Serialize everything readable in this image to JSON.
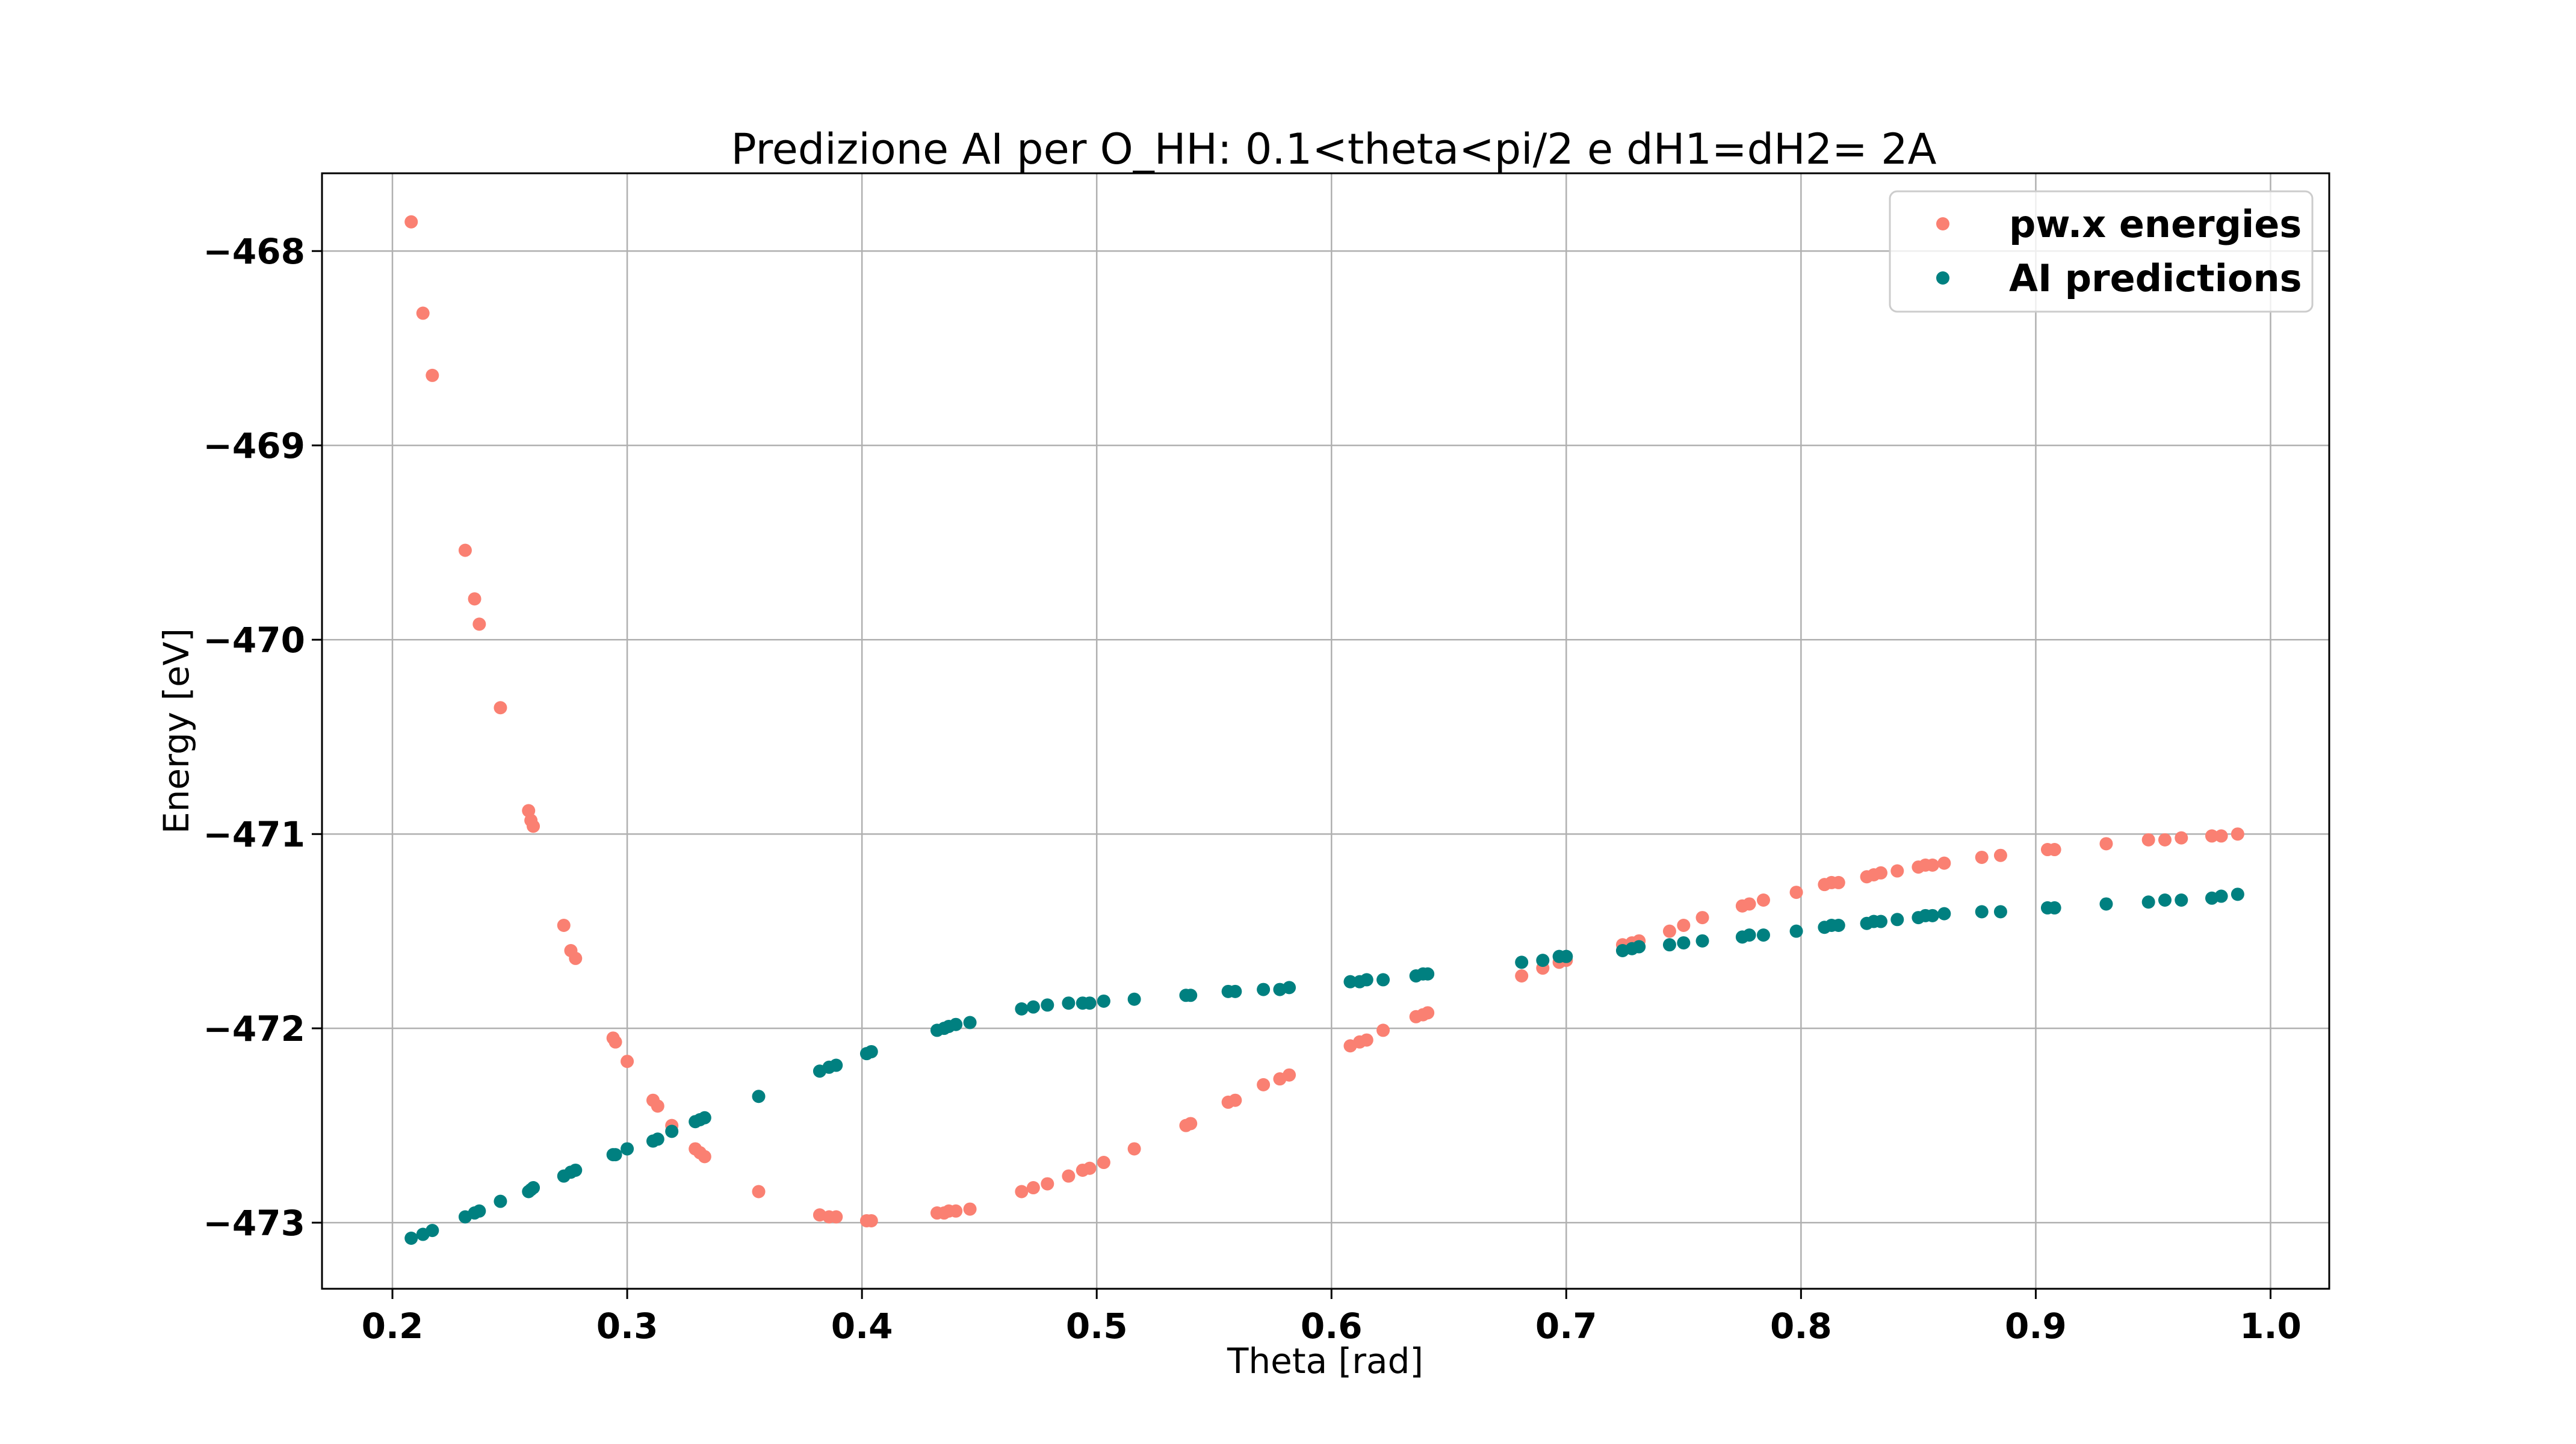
{
  "chart_data": {
    "type": "scatter",
    "title": "Predizione AI per O_HH: 0.1<theta<pi/2 e dH1=dH2= 2A",
    "xlabel": "Theta [rad]",
    "ylabel": "Energy [eV]",
    "xlim": [
      0.17,
      1.025
    ],
    "ylim": [
      -473.34,
      -467.6
    ],
    "grid": true,
    "legend_position": "top-right",
    "x_ticks": [
      {
        "value": 0.2,
        "label": "0.2"
      },
      {
        "value": 0.3,
        "label": "0.3"
      },
      {
        "value": 0.4,
        "label": "0.4"
      },
      {
        "value": 0.5,
        "label": "0.5"
      },
      {
        "value": 0.6,
        "label": "0.6"
      },
      {
        "value": 0.7,
        "label": "0.7"
      },
      {
        "value": 0.8,
        "label": "0.8"
      },
      {
        "value": 0.9,
        "label": "0.9"
      },
      {
        "value": 1.0,
        "label": "1.0"
      }
    ],
    "y_ticks": [
      {
        "value": -468,
        "label": "−468"
      },
      {
        "value": -469,
        "label": "−469"
      },
      {
        "value": -470,
        "label": "−470"
      },
      {
        "value": -471,
        "label": "−471"
      },
      {
        "value": -472,
        "label": "−472"
      },
      {
        "value": -473,
        "label": "−473"
      }
    ],
    "series": [
      {
        "name": "pw.x energies",
        "color": "#fa8072",
        "points": [
          [
            0.208,
            -467.85
          ],
          [
            0.213,
            -468.32
          ],
          [
            0.217,
            -468.64
          ],
          [
            0.231,
            -469.54
          ],
          [
            0.235,
            -469.79
          ],
          [
            0.237,
            -469.92
          ],
          [
            0.246,
            -470.35
          ],
          [
            0.258,
            -470.88
          ],
          [
            0.259,
            -470.93
          ],
          [
            0.26,
            -470.96
          ],
          [
            0.273,
            -471.47
          ],
          [
            0.276,
            -471.6
          ],
          [
            0.278,
            -471.64
          ],
          [
            0.294,
            -472.05
          ],
          [
            0.295,
            -472.07
          ],
          [
            0.3,
            -472.17
          ],
          [
            0.311,
            -472.37
          ],
          [
            0.313,
            -472.4
          ],
          [
            0.319,
            -472.5
          ],
          [
            0.329,
            -472.62
          ],
          [
            0.331,
            -472.64
          ],
          [
            0.333,
            -472.66
          ],
          [
            0.356,
            -472.84
          ],
          [
            0.382,
            -472.96
          ],
          [
            0.386,
            -472.97
          ],
          [
            0.389,
            -472.97
          ],
          [
            0.402,
            -472.99
          ],
          [
            0.404,
            -472.99
          ],
          [
            0.432,
            -472.95
          ],
          [
            0.435,
            -472.95
          ],
          [
            0.437,
            -472.94
          ],
          [
            0.44,
            -472.94
          ],
          [
            0.446,
            -472.93
          ],
          [
            0.468,
            -472.84
          ],
          [
            0.473,
            -472.82
          ],
          [
            0.479,
            -472.8
          ],
          [
            0.488,
            -472.76
          ],
          [
            0.494,
            -472.73
          ],
          [
            0.497,
            -472.72
          ],
          [
            0.503,
            -472.69
          ],
          [
            0.516,
            -472.62
          ],
          [
            0.538,
            -472.5
          ],
          [
            0.54,
            -472.49
          ],
          [
            0.556,
            -472.38
          ],
          [
            0.559,
            -472.37
          ],
          [
            0.571,
            -472.29
          ],
          [
            0.578,
            -472.26
          ],
          [
            0.582,
            -472.24
          ],
          [
            0.608,
            -472.09
          ],
          [
            0.612,
            -472.07
          ],
          [
            0.615,
            -472.06
          ],
          [
            0.622,
            -472.01
          ],
          [
            0.636,
            -471.94
          ],
          [
            0.639,
            -471.93
          ],
          [
            0.641,
            -471.92
          ],
          [
            0.681,
            -471.73
          ],
          [
            0.69,
            -471.69
          ],
          [
            0.697,
            -471.66
          ],
          [
            0.7,
            -471.65
          ],
          [
            0.724,
            -471.57
          ],
          [
            0.728,
            -471.56
          ],
          [
            0.731,
            -471.55
          ],
          [
            0.744,
            -471.5
          ],
          [
            0.75,
            -471.47
          ],
          [
            0.758,
            -471.43
          ],
          [
            0.775,
            -471.37
          ],
          [
            0.778,
            -471.36
          ],
          [
            0.784,
            -471.34
          ],
          [
            0.798,
            -471.3
          ],
          [
            0.81,
            -471.26
          ],
          [
            0.813,
            -471.25
          ],
          [
            0.816,
            -471.25
          ],
          [
            0.828,
            -471.22
          ],
          [
            0.831,
            -471.21
          ],
          [
            0.834,
            -471.2
          ],
          [
            0.841,
            -471.19
          ],
          [
            0.85,
            -471.17
          ],
          [
            0.853,
            -471.16
          ],
          [
            0.856,
            -471.16
          ],
          [
            0.861,
            -471.15
          ],
          [
            0.877,
            -471.12
          ],
          [
            0.885,
            -471.11
          ],
          [
            0.905,
            -471.08
          ],
          [
            0.908,
            -471.08
          ],
          [
            0.93,
            -471.05
          ],
          [
            0.948,
            -471.03
          ],
          [
            0.955,
            -471.03
          ],
          [
            0.962,
            -471.02
          ],
          [
            0.975,
            -471.01
          ],
          [
            0.979,
            -471.01
          ],
          [
            0.986,
            -471.0
          ]
        ]
      },
      {
        "name": "AI predictions",
        "color": "#008080",
        "points": [
          [
            0.208,
            -473.08
          ],
          [
            0.213,
            -473.06
          ],
          [
            0.217,
            -473.04
          ],
          [
            0.231,
            -472.97
          ],
          [
            0.235,
            -472.95
          ],
          [
            0.237,
            -472.94
          ],
          [
            0.246,
            -472.89
          ],
          [
            0.258,
            -472.84
          ],
          [
            0.259,
            -472.83
          ],
          [
            0.26,
            -472.82
          ],
          [
            0.273,
            -472.76
          ],
          [
            0.276,
            -472.74
          ],
          [
            0.278,
            -472.73
          ],
          [
            0.294,
            -472.65
          ],
          [
            0.295,
            -472.65
          ],
          [
            0.3,
            -472.62
          ],
          [
            0.311,
            -472.58
          ],
          [
            0.313,
            -472.57
          ],
          [
            0.319,
            -472.53
          ],
          [
            0.329,
            -472.48
          ],
          [
            0.331,
            -472.47
          ],
          [
            0.333,
            -472.46
          ],
          [
            0.356,
            -472.35
          ],
          [
            0.382,
            -472.22
          ],
          [
            0.386,
            -472.2
          ],
          [
            0.389,
            -472.19
          ],
          [
            0.402,
            -472.13
          ],
          [
            0.404,
            -472.12
          ],
          [
            0.432,
            -472.01
          ],
          [
            0.435,
            -472.0
          ],
          [
            0.437,
            -471.99
          ],
          [
            0.44,
            -471.98
          ],
          [
            0.446,
            -471.97
          ],
          [
            0.468,
            -471.9
          ],
          [
            0.473,
            -471.89
          ],
          [
            0.479,
            -471.88
          ],
          [
            0.488,
            -471.87
          ],
          [
            0.494,
            -471.87
          ],
          [
            0.497,
            -471.87
          ],
          [
            0.503,
            -471.86
          ],
          [
            0.516,
            -471.85
          ],
          [
            0.538,
            -471.83
          ],
          [
            0.54,
            -471.83
          ],
          [
            0.556,
            -471.81
          ],
          [
            0.559,
            -471.81
          ],
          [
            0.571,
            -471.8
          ],
          [
            0.578,
            -471.8
          ],
          [
            0.582,
            -471.79
          ],
          [
            0.608,
            -471.76
          ],
          [
            0.612,
            -471.76
          ],
          [
            0.615,
            -471.75
          ],
          [
            0.622,
            -471.75
          ],
          [
            0.636,
            -471.73
          ],
          [
            0.639,
            -471.72
          ],
          [
            0.641,
            -471.72
          ],
          [
            0.681,
            -471.66
          ],
          [
            0.69,
            -471.65
          ],
          [
            0.697,
            -471.63
          ],
          [
            0.7,
            -471.63
          ],
          [
            0.724,
            -471.6
          ],
          [
            0.728,
            -471.59
          ],
          [
            0.731,
            -471.58
          ],
          [
            0.744,
            -471.57
          ],
          [
            0.75,
            -471.56
          ],
          [
            0.758,
            -471.55
          ],
          [
            0.775,
            -471.53
          ],
          [
            0.778,
            -471.52
          ],
          [
            0.784,
            -471.52
          ],
          [
            0.798,
            -471.5
          ],
          [
            0.81,
            -471.48
          ],
          [
            0.813,
            -471.47
          ],
          [
            0.816,
            -471.47
          ],
          [
            0.828,
            -471.46
          ],
          [
            0.831,
            -471.45
          ],
          [
            0.834,
            -471.45
          ],
          [
            0.841,
            -471.44
          ],
          [
            0.85,
            -471.43
          ],
          [
            0.853,
            -471.42
          ],
          [
            0.856,
            -471.42
          ],
          [
            0.861,
            -471.41
          ],
          [
            0.877,
            -471.4
          ],
          [
            0.885,
            -471.4
          ],
          [
            0.905,
            -471.38
          ],
          [
            0.908,
            -471.38
          ],
          [
            0.93,
            -471.36
          ],
          [
            0.948,
            -471.35
          ],
          [
            0.955,
            -471.34
          ],
          [
            0.962,
            -471.34
          ],
          [
            0.975,
            -471.33
          ],
          [
            0.979,
            -471.32
          ],
          [
            0.986,
            -471.31
          ]
        ]
      }
    ]
  }
}
